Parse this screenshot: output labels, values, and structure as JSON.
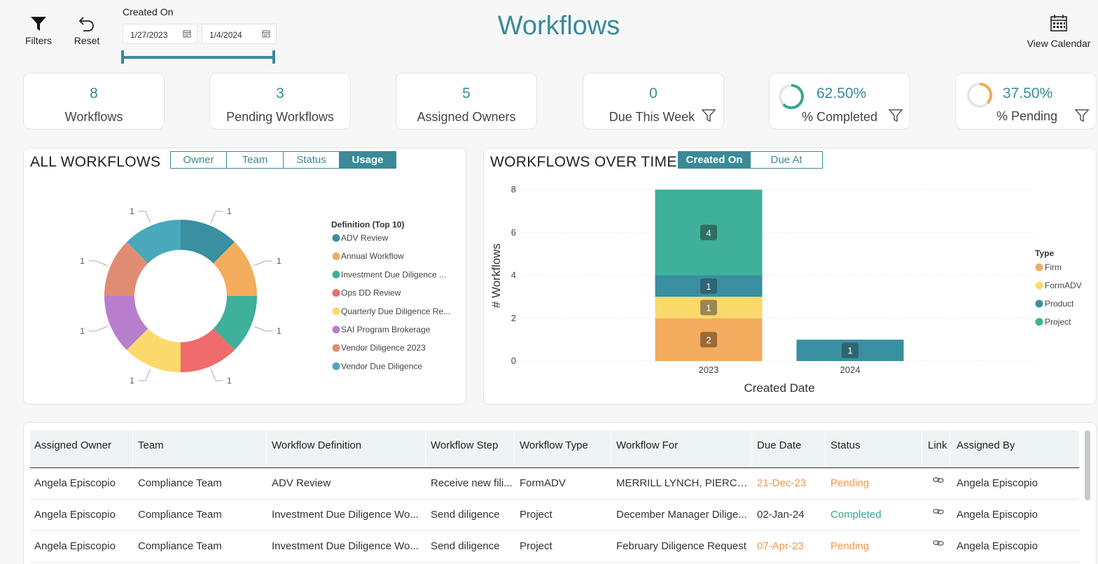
{
  "header": {
    "filters_label": "Filters",
    "reset_label": "Reset",
    "created_on_label": "Created On",
    "date_from": "1/27/2023",
    "date_to": "1/4/2024",
    "title": "Workflows",
    "view_calendar_label": "View Calendar"
  },
  "kpis": [
    {
      "value": "8",
      "label": "Workflows"
    },
    {
      "value": "3",
      "label": "Pending Workflows"
    },
    {
      "value": "5",
      "label": "Assigned Owners"
    },
    {
      "value": "0",
      "label": "Due This Week"
    },
    {
      "value": "62.50%",
      "label": "% Completed",
      "fraction": 0.625,
      "color": "#3aa68f"
    },
    {
      "value": "37.50%",
      "label": "% Pending",
      "fraction": 0.375,
      "color": "#f0a95a"
    }
  ],
  "all_workflows": {
    "title": "ALL WORKFLOWS",
    "tabs": [
      "Owner",
      "Team",
      "Status",
      "Usage"
    ],
    "active_tab": "Usage"
  },
  "workflows_over_time": {
    "title": "WORKFLOWS OVER TIME",
    "tabs": [
      "Created On",
      "Due At"
    ],
    "active_tab": "Created On"
  },
  "chart_data": [
    {
      "type": "pie",
      "donut": true,
      "legend_title": "Definition (Top 10)",
      "legend_position": "right",
      "slices": [
        {
          "label": "ADV Review",
          "value": 1,
          "color": "#3a8fa0"
        },
        {
          "label": "Annual Workflow",
          "value": 1,
          "color": "#f4ac5e"
        },
        {
          "label": "Investment Due Diligence ...",
          "value": 1,
          "color": "#3fb09a"
        },
        {
          "label": "Ops DD Review",
          "value": 1,
          "color": "#f06b6b"
        },
        {
          "label": "Quarterly Due Diligence Re...",
          "value": 1,
          "color": "#fbd96a"
        },
        {
          "label": "SAI Program Brokerage",
          "value": 1,
          "color": "#b77ece"
        },
        {
          "label": "Vendor Diligence 2023",
          "value": 1,
          "color": "#e08c72"
        },
        {
          "label": "Vendor Due Diligence",
          "value": 1,
          "color": "#4aa8bb"
        }
      ]
    },
    {
      "type": "bar",
      "stacked": true,
      "categories": [
        "2023",
        "2024"
      ],
      "xlabel": "Created Date",
      "ylabel": "# Workflows",
      "ylim": [
        0,
        8
      ],
      "yticks": [
        0,
        2,
        4,
        6,
        8
      ],
      "grid": true,
      "legend_title": "Type",
      "legend_position": "right",
      "series": [
        {
          "name": "Firm",
          "color": "#f4ac5e",
          "values": [
            2,
            0
          ]
        },
        {
          "name": "FormADV",
          "color": "#fbd96a",
          "values": [
            1,
            0
          ]
        },
        {
          "name": "Product",
          "color": "#3a8fa0",
          "values": [
            1,
            1
          ]
        },
        {
          "name": "Project",
          "color": "#3fb09a",
          "values": [
            4,
            0
          ]
        }
      ]
    }
  ],
  "table": {
    "columns": [
      "Assigned Owner",
      "Team",
      "Workflow Definition",
      "Workflow Step",
      "Workflow Type",
      "Workflow For",
      "Due Date",
      "Status",
      "Link",
      "Assigned By"
    ],
    "rows": [
      {
        "owner": "Angela Episcopio",
        "team": "Compliance Team",
        "definition": "ADV Review",
        "step": "Receive new fili...",
        "type": "FormADV",
        "for": "MERRILL LYNCH, PIERCE, F...",
        "due": "21-Dec-23",
        "due_late": true,
        "status": "Pending",
        "assigned_by": "Angela Episcopio"
      },
      {
        "owner": "Angela Episcopio",
        "team": "Compliance Team",
        "definition": "Investment Due Diligence Wo...",
        "step": "Send diligence",
        "type": "Project",
        "for": "December Manager Dilige...",
        "due": "02-Jan-24",
        "due_late": false,
        "status": "Completed",
        "assigned_by": "Angela Episcopio"
      },
      {
        "owner": "Angela Episcopio",
        "team": "Compliance Team",
        "definition": "Investment Due Diligence Wo...",
        "step": "Send diligence",
        "type": "Project",
        "for": "February Diligence Request",
        "due": "07-Apr-23",
        "due_late": true,
        "status": "Pending",
        "assigned_by": "Angela Episcopio"
      }
    ]
  }
}
